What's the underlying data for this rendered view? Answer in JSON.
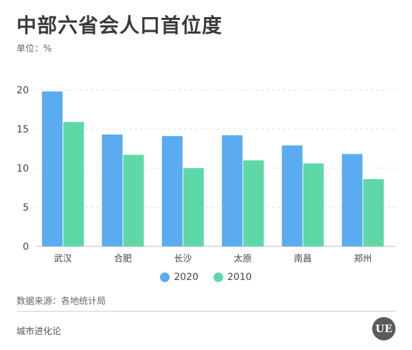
{
  "title": "中部六省会人口首位度",
  "unit_label": "单位：%",
  "source": "数据来源：各地统计局",
  "brand": "城市进化论",
  "logo_text": "UE",
  "colors": {
    "series_2020": "#5aabef",
    "series_2010": "#5fd8a8"
  },
  "chart_data": {
    "type": "bar",
    "categories": [
      "武汉",
      "合肥",
      "长沙",
      "太原",
      "南昌",
      "郑州"
    ],
    "series": [
      {
        "name": "2020",
        "values": [
          19.8,
          14.3,
          14.1,
          14.2,
          12.9,
          11.8
        ]
      },
      {
        "name": "2010",
        "values": [
          15.9,
          11.7,
          10.0,
          11.0,
          10.6,
          8.6
        ]
      }
    ],
    "y_ticks": [
      0,
      5,
      10,
      15,
      20
    ],
    "ylim": [
      0,
      20
    ],
    "grid": true,
    "legend_position": "bottom"
  }
}
